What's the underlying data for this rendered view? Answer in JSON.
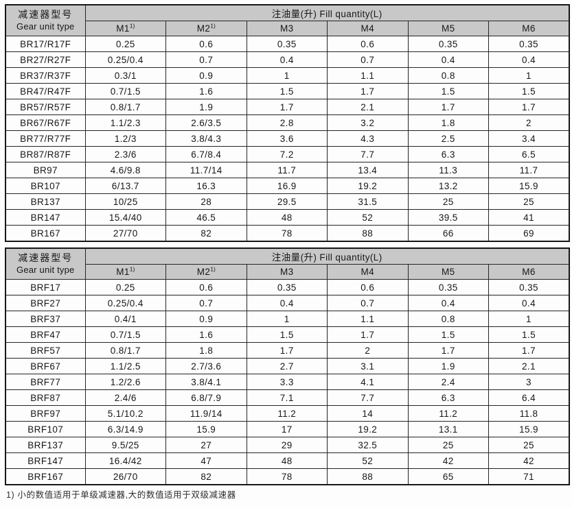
{
  "colors": {
    "header_bg": "#c8c8c8",
    "border": "#242424",
    "outer_border": "#161616",
    "page_bg": "#fdfdfd",
    "text": "#171717"
  },
  "tables": [
    {
      "name": "BR-R-series-fill-quantity",
      "row_header": {
        "zh": "减速器型号",
        "en": "Gear unit type"
      },
      "group_header": "注油量(升) Fill quantity(L)",
      "columns": [
        {
          "label": "M1",
          "sup": "1)"
        },
        {
          "label": "M2",
          "sup": "1)"
        },
        {
          "label": "M3",
          "sup": ""
        },
        {
          "label": "M4",
          "sup": ""
        },
        {
          "label": "M5",
          "sup": ""
        },
        {
          "label": "M6",
          "sup": ""
        }
      ],
      "rows": [
        {
          "type": "BR17/R17F",
          "values": [
            "0.25",
            "0.6",
            "0.35",
            "0.6",
            "0.35",
            "0.35"
          ]
        },
        {
          "type": "BR27/R27F",
          "values": [
            "0.25/0.4",
            "0.7",
            "0.4",
            "0.7",
            "0.4",
            "0.4"
          ]
        },
        {
          "type": "BR37/R37F",
          "values": [
            "0.3/1",
            "0.9",
            "1",
            "1.1",
            "0.8",
            "1"
          ]
        },
        {
          "type": "BR47/R47F",
          "values": [
            "0.7/1.5",
            "1.6",
            "1.5",
            "1.7",
            "1.5",
            "1.5"
          ]
        },
        {
          "type": "BR57/R57F",
          "values": [
            "0.8/1.7",
            "1.9",
            "1.7",
            "2.1",
            "1.7",
            "1.7"
          ]
        },
        {
          "type": "BR67/R67F",
          "values": [
            "1.1/2.3",
            "2.6/3.5",
            "2.8",
            "3.2",
            "1.8",
            "2"
          ]
        },
        {
          "type": "BR77/R77F",
          "values": [
            "1.2/3",
            "3.8/4.3",
            "3.6",
            "4.3",
            "2.5",
            "3.4"
          ]
        },
        {
          "type": "BR87/R87F",
          "values": [
            "2.3/6",
            "6.7/8.4",
            "7.2",
            "7.7",
            "6.3",
            "6.5"
          ]
        },
        {
          "type": "BR97",
          "values": [
            "4.6/9.8",
            "11.7/14",
            "11.7",
            "13.4",
            "11.3",
            "11.7"
          ]
        },
        {
          "type": "BR107",
          "values": [
            "6/13.7",
            "16.3",
            "16.9",
            "19.2",
            "13.2",
            "15.9"
          ]
        },
        {
          "type": "BR137",
          "values": [
            "10/25",
            "28",
            "29.5",
            "31.5",
            "25",
            "25"
          ]
        },
        {
          "type": "BR147",
          "values": [
            "15.4/40",
            "46.5",
            "48",
            "52",
            "39.5",
            "41"
          ]
        },
        {
          "type": "BR167",
          "values": [
            "27/70",
            "82",
            "78",
            "88",
            "66",
            "69"
          ]
        }
      ]
    },
    {
      "name": "BRF-series-fill-quantity",
      "row_header": {
        "zh": "减速器型号",
        "en": "Gear unit type"
      },
      "group_header": "注油量(升) Fill quantity(L)",
      "columns": [
        {
          "label": "M1",
          "sup": "1)"
        },
        {
          "label": "M2",
          "sup": "1)"
        },
        {
          "label": "M3",
          "sup": ""
        },
        {
          "label": "M4",
          "sup": ""
        },
        {
          "label": "M5",
          "sup": ""
        },
        {
          "label": "M6",
          "sup": ""
        }
      ],
      "rows": [
        {
          "type": "BRF17",
          "values": [
            "0.25",
            "0.6",
            "0.35",
            "0.6",
            "0.35",
            "0.35"
          ]
        },
        {
          "type": "BRF27",
          "values": [
            "0.25/0.4",
            "0.7",
            "0.4",
            "0.7",
            "0.4",
            "0.4"
          ]
        },
        {
          "type": "BRF37",
          "values": [
            "0.4/1",
            "0.9",
            "1",
            "1.1",
            "0.8",
            "1"
          ]
        },
        {
          "type": "BRF47",
          "values": [
            "0.7/1.5",
            "1.6",
            "1.5",
            "1.7",
            "1.5",
            "1.5"
          ]
        },
        {
          "type": "BRF57",
          "values": [
            "0.8/1.7",
            "1.8",
            "1.7",
            "2",
            "1.7",
            "1.7"
          ]
        },
        {
          "type": "BRF67",
          "values": [
            "1.1/2.5",
            "2.7/3.6",
            "2.7",
            "3.1",
            "1.9",
            "2.1"
          ]
        },
        {
          "type": "BRF77",
          "values": [
            "1.2/2.6",
            "3.8/4.1",
            "3.3",
            "4.1",
            "2.4",
            "3"
          ]
        },
        {
          "type": "BRF87",
          "values": [
            "2.4/6",
            "6.8/7.9",
            "7.1",
            "7.7",
            "6.3",
            "6.4"
          ]
        },
        {
          "type": "BRF97",
          "values": [
            "5.1/10.2",
            "11.9/14",
            "11.2",
            "14",
            "11.2",
            "11.8"
          ]
        },
        {
          "type": "BRF107",
          "values": [
            "6.3/14.9",
            "15.9",
            "17",
            "19.2",
            "13.1",
            "15.9"
          ]
        },
        {
          "type": "BRF137",
          "values": [
            "9.5/25",
            "27",
            "29",
            "32.5",
            "25",
            "25"
          ]
        },
        {
          "type": "BRF147",
          "values": [
            "16.4/42",
            "47",
            "48",
            "52",
            "42",
            "42"
          ]
        },
        {
          "type": "BRF167",
          "values": [
            "26/70",
            "82",
            "78",
            "88",
            "65",
            "71"
          ]
        }
      ]
    }
  ],
  "footnote": "1) 小的数值适用于单级减速器,大的数值适用于双级减速器"
}
